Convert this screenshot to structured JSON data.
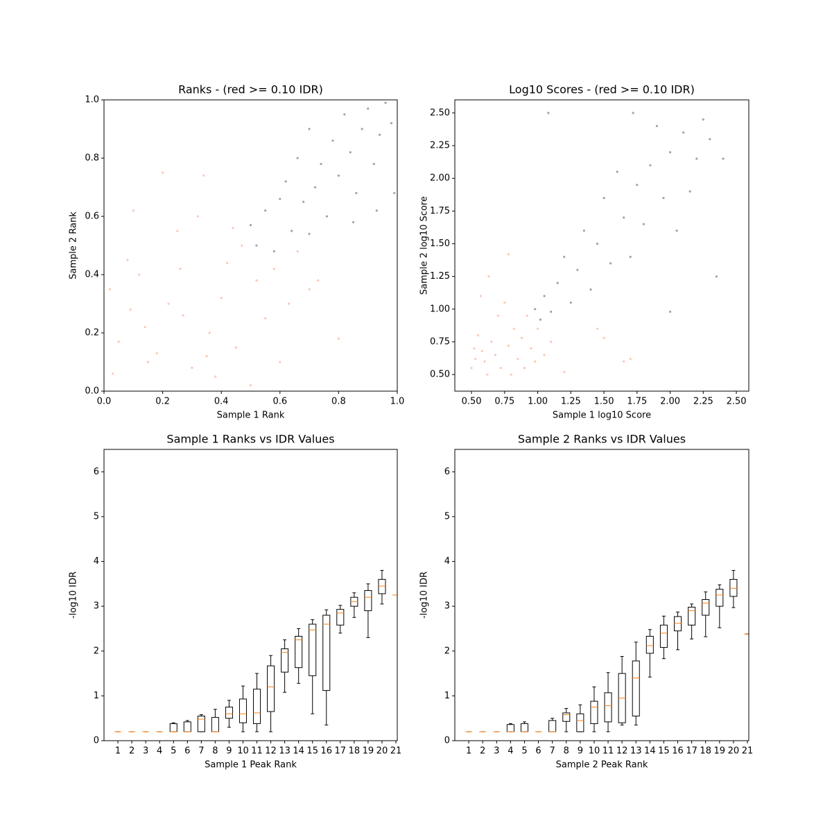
{
  "chart_data": [
    {
      "type": "scatter",
      "title": "Ranks - (red >= 0.10 IDR)",
      "xlabel": "Sample 1 Rank",
      "ylabel": "Sample 2 Rank",
      "xlim": [
        0,
        1
      ],
      "ylim": [
        0,
        1
      ],
      "xticks": [
        {
          "value": 0,
          "label": "0.0"
        },
        0.2,
        0.4,
        0.6,
        0.8,
        {
          "value": 1,
          "label": "1.0"
        }
      ],
      "yticks": [
        {
          "value": 0,
          "label": "0.0"
        },
        0.2,
        0.4,
        0.6,
        0.8,
        {
          "value": 1,
          "label": "1.0"
        }
      ],
      "series": [
        {
          "color": "#f7bba5",
          "x": [
            0.02,
            0.05,
            0.08,
            0.1,
            0.12,
            0.15,
            0.18,
            0.2,
            0.22,
            0.25,
            0.27,
            0.3,
            0.32,
            0.34,
            0.36,
            0.38,
            0.4,
            0.42,
            0.45,
            0.47,
            0.5,
            0.52,
            0.55,
            0.58,
            0.6,
            0.63,
            0.66,
            0.7,
            0.73,
            0.8,
            0.03,
            0.14,
            0.26,
            0.44,
            0.09,
            0.35
          ],
          "values": [
            0.35,
            0.17,
            0.45,
            0.62,
            0.4,
            0.1,
            0.13,
            0.75,
            0.3,
            0.55,
            0.26,
            0.08,
            0.6,
            0.74,
            0.2,
            0.05,
            0.32,
            0.44,
            0.15,
            0.5,
            0.02,
            0.38,
            0.25,
            0.42,
            0.1,
            0.3,
            0.48,
            0.35,
            0.38,
            0.18,
            0.06,
            0.22,
            0.42,
            0.56,
            0.28,
            0.12
          ]
        },
        {
          "color": "#8c8c8c",
          "x": [
            0.5,
            0.52,
            0.55,
            0.58,
            0.6,
            0.62,
            0.64,
            0.66,
            0.68,
            0.7,
            0.72,
            0.74,
            0.76,
            0.78,
            0.8,
            0.82,
            0.84,
            0.86,
            0.88,
            0.9,
            0.92,
            0.94,
            0.96,
            0.98,
            0.99,
            0.85,
            0.7,
            0.93
          ],
          "values": [
            0.57,
            0.5,
            0.62,
            0.48,
            0.66,
            0.72,
            0.55,
            0.8,
            0.65,
            0.9,
            0.7,
            0.78,
            0.6,
            0.86,
            0.74,
            0.95,
            0.82,
            0.68,
            0.9,
            0.97,
            0.78,
            0.88,
            0.99,
            0.92,
            0.68,
            0.58,
            0.54,
            0.62
          ]
        }
      ]
    },
    {
      "type": "scatter",
      "title": "Log10 Scores - (red >= 0.10 IDR)",
      "xlabel": "Sample 1 log10 Score",
      "ylabel": "Sample 2 log10 Score",
      "xlim": [
        0.374,
        2.594
      ],
      "ylim": [
        0.373,
        2.6
      ],
      "xticks": [
        {
          "value": 0.5,
          "label": "0.50"
        },
        0.75,
        {
          "value": 1,
          "label": "1.00"
        },
        1.25,
        {
          "value": 1.5,
          "label": "1.50"
        },
        1.75,
        {
          "value": 2,
          "label": "2.00"
        },
        2.25,
        {
          "value": 2.5,
          "label": "2.50"
        }
      ],
      "yticks": [
        {
          "value": 0.5,
          "label": "0.50"
        },
        0.75,
        {
          "value": 1,
          "label": "1.00"
        },
        1.25,
        {
          "value": 1.5,
          "label": "1.50"
        },
        1.75,
        {
          "value": 2,
          "label": "2.00"
        },
        2.25,
        {
          "value": 2.5,
          "label": "2.50"
        }
      ],
      "series": [
        {
          "color": "#f7bba5",
          "x": [
            0.5,
            0.52,
            0.55,
            0.57,
            0.6,
            0.62,
            0.65,
            0.68,
            0.7,
            0.72,
            0.75,
            0.78,
            0.8,
            0.82,
            0.85,
            0.88,
            0.9,
            0.92,
            0.95,
            0.98,
            1.0,
            1.05,
            1.1,
            1.2,
            1.5,
            1.65,
            1.7,
            0.53,
            0.58,
            0.63,
            0.78,
            1.45
          ],
          "values": [
            0.55,
            0.7,
            0.8,
            1.1,
            0.6,
            0.5,
            0.75,
            0.65,
            0.95,
            0.55,
            1.05,
            0.72,
            0.5,
            0.85,
            0.62,
            0.78,
            0.55,
            0.95,
            0.7,
            0.6,
            0.85,
            0.65,
            0.75,
            0.52,
            0.78,
            0.6,
            0.62,
            0.62,
            0.68,
            1.25,
            1.42,
            0.85
          ]
        },
        {
          "color": "#8c8c8c",
          "x": [
            0.98,
            1.02,
            1.05,
            1.1,
            1.15,
            1.2,
            1.25,
            1.3,
            1.35,
            1.4,
            1.45,
            1.5,
            1.55,
            1.6,
            1.65,
            1.7,
            1.75,
            1.8,
            1.85,
            1.9,
            1.95,
            2.0,
            2.05,
            2.1,
            2.15,
            2.2,
            2.25,
            2.3,
            2.35,
            2.4,
            1.08,
            1.72,
            2.0
          ],
          "values": [
            1.0,
            0.92,
            1.1,
            0.98,
            1.2,
            1.4,
            1.05,
            1.3,
            1.6,
            1.15,
            1.5,
            1.85,
            1.35,
            2.05,
            1.7,
            1.4,
            1.95,
            1.65,
            2.1,
            2.4,
            1.85,
            2.2,
            1.6,
            2.35,
            1.9,
            2.15,
            2.45,
            2.3,
            1.25,
            2.15,
            2.5,
            2.5,
            0.98
          ]
        }
      ]
    },
    {
      "type": "box",
      "title": "Sample 1 Ranks vs IDR Values",
      "xlabel": "Sample 1 Peak Rank",
      "ylabel": "-log10 IDR",
      "xlim": [
        0,
        21.1
      ],
      "ylim": [
        0,
        6.5
      ],
      "xticks": [
        1,
        2,
        3,
        4,
        5,
        6,
        7,
        8,
        9,
        10,
        11,
        12,
        13,
        14,
        15,
        16,
        17,
        18,
        19,
        20,
        21
      ],
      "yticks": [
        0,
        1,
        2,
        3,
        4,
        5,
        6
      ],
      "positions": [
        1,
        2,
        3,
        4,
        5,
        6,
        7,
        8,
        9,
        10,
        11,
        12,
        13,
        14,
        15,
        16,
        17,
        18,
        19,
        20,
        21
      ],
      "whislo": [
        0.2,
        0.2,
        0.2,
        0.2,
        0.2,
        0.2,
        0.2,
        0.2,
        0.3,
        0.2,
        0.2,
        0.2,
        1.08,
        1.28,
        0.6,
        0.35,
        2.4,
        2.75,
        2.3,
        3.05,
        3.25
      ],
      "q1": [
        0.2,
        0.2,
        0.2,
        0.2,
        0.2,
        0.2,
        0.2,
        0.2,
        0.5,
        0.4,
        0.38,
        0.65,
        1.53,
        1.63,
        1.45,
        1.12,
        2.58,
        3.0,
        2.9,
        3.28,
        3.25
      ],
      "median": [
        0.2,
        0.2,
        0.2,
        0.2,
        0.2,
        0.2,
        0.48,
        0.2,
        0.6,
        0.6,
        0.62,
        1.2,
        1.97,
        2.25,
        2.47,
        2.6,
        2.85,
        3.1,
        3.2,
        3.45,
        3.25
      ],
      "q3": [
        0.2,
        0.2,
        0.2,
        0.2,
        0.38,
        0.42,
        0.55,
        0.52,
        0.75,
        0.93,
        1.15,
        1.67,
        2.05,
        2.33,
        2.6,
        2.8,
        2.93,
        3.2,
        3.35,
        3.6,
        3.25
      ],
      "whishi": [
        0.2,
        0.2,
        0.2,
        0.2,
        0.4,
        0.45,
        0.58,
        0.7,
        0.9,
        1.22,
        1.5,
        1.9,
        2.25,
        2.5,
        2.7,
        2.92,
        3.02,
        3.3,
        3.5,
        3.8,
        3.25
      ]
    },
    {
      "type": "box",
      "title": "Sample 2 Ranks vs IDR Values",
      "xlabel": "Sample 2 Peak Rank",
      "ylabel": "-log10 IDR",
      "xlim": [
        0,
        21.1
      ],
      "ylim": [
        0,
        6.5
      ],
      "xticks": [
        1,
        2,
        3,
        4,
        5,
        6,
        7,
        8,
        9,
        10,
        11,
        12,
        13,
        14,
        15,
        16,
        17,
        18,
        19,
        20,
        21
      ],
      "yticks": [
        0,
        1,
        2,
        3,
        4,
        5,
        6
      ],
      "positions": [
        1,
        2,
        3,
        4,
        5,
        6,
        7,
        8,
        9,
        10,
        11,
        12,
        13,
        14,
        15,
        16,
        17,
        18,
        19,
        20,
        21
      ],
      "whislo": [
        0.2,
        0.2,
        0.2,
        0.2,
        0.2,
        0.2,
        0.2,
        0.2,
        0.2,
        0.2,
        0.2,
        0.35,
        0.35,
        1.42,
        1.83,
        2.03,
        2.27,
        2.32,
        2.52,
        2.97,
        2.38
      ],
      "q1": [
        0.2,
        0.2,
        0.2,
        0.2,
        0.2,
        0.2,
        0.2,
        0.43,
        0.2,
        0.38,
        0.42,
        0.4,
        0.55,
        1.95,
        2.08,
        2.45,
        2.58,
        2.8,
        3.0,
        3.22,
        2.38
      ],
      "median": [
        0.2,
        0.2,
        0.2,
        0.2,
        0.2,
        0.2,
        0.2,
        0.58,
        0.45,
        0.75,
        0.78,
        0.95,
        1.4,
        2.12,
        2.4,
        2.62,
        2.9,
        3.07,
        3.25,
        3.4,
        2.38
      ],
      "q3": [
        0.2,
        0.2,
        0.2,
        0.36,
        0.38,
        0.2,
        0.45,
        0.62,
        0.6,
        0.88,
        1.07,
        1.5,
        1.78,
        2.33,
        2.58,
        2.77,
        2.98,
        3.15,
        3.38,
        3.6,
        2.38
      ],
      "whishi": [
        0.2,
        0.2,
        0.2,
        0.38,
        0.42,
        0.2,
        0.5,
        0.72,
        0.8,
        1.2,
        1.52,
        1.88,
        2.2,
        2.48,
        2.78,
        2.87,
        3.05,
        3.32,
        3.48,
        3.8,
        2.38
      ]
    }
  ]
}
